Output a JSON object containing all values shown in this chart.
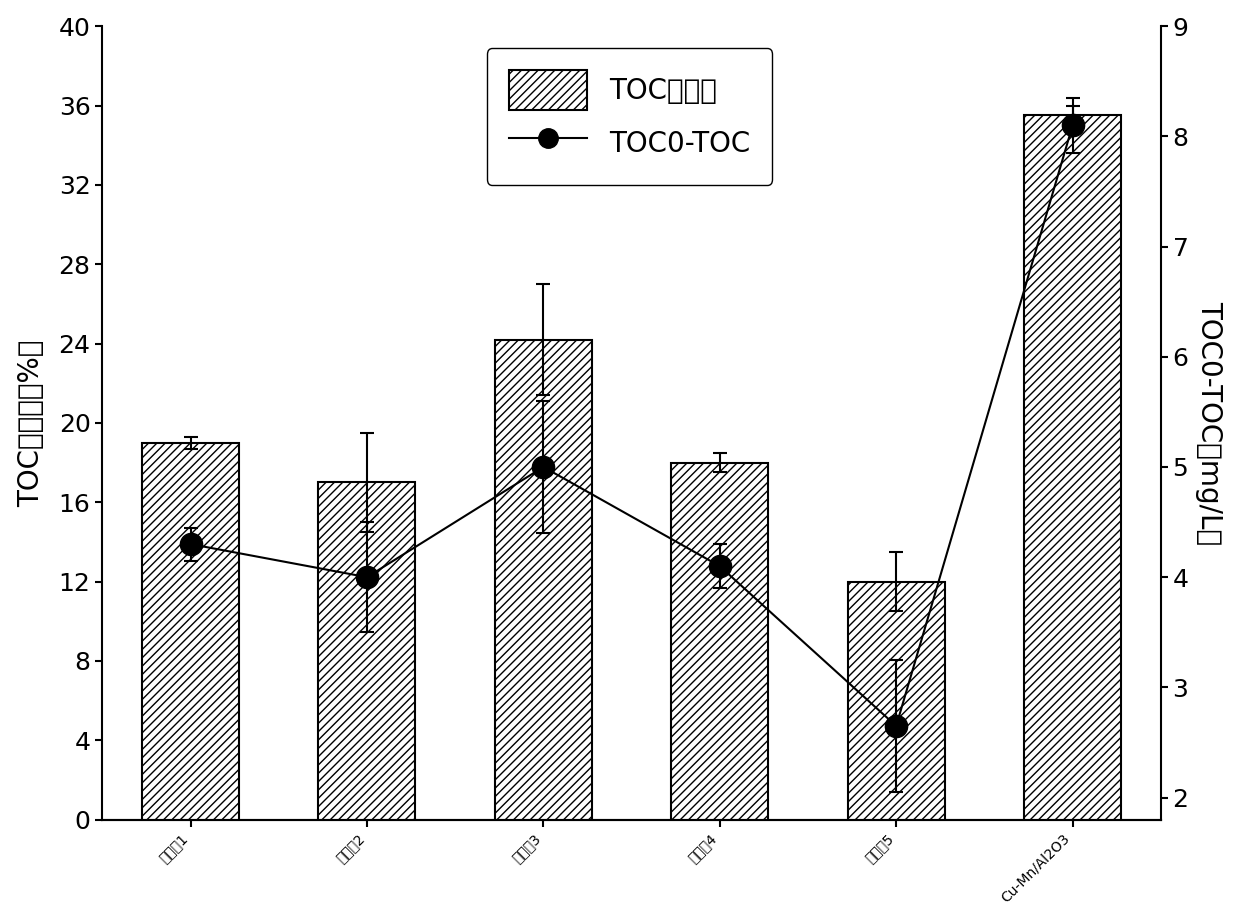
{
  "categories": [
    "催化剁1",
    "催化剁2",
    "催化剁3",
    "催化剁4",
    "催化剁5",
    "Cu-Mn/Al2O3"
  ],
  "bar_values": [
    19.0,
    17.0,
    24.2,
    18.0,
    12.0,
    35.5
  ],
  "bar_yerr": [
    0.3,
    2.5,
    2.8,
    0.5,
    1.5,
    0.5
  ],
  "line_values": [
    4.3,
    4.0,
    5.0,
    4.1,
    2.65,
    8.1
  ],
  "line_yerr": [
    0.15,
    0.5,
    0.6,
    0.2,
    0.6,
    0.25
  ],
  "ylabel_left": "TOC去除率（%）",
  "ylabel_right": "TOC0-TOC（mg/L）",
  "ylim_left": [
    0,
    40
  ],
  "ylim_right": [
    1.8,
    9
  ],
  "yticks_left": [
    0,
    4,
    8,
    12,
    16,
    20,
    24,
    28,
    32,
    36,
    40
  ],
  "yticks_right": [
    2,
    3,
    4,
    5,
    6,
    7,
    8,
    9
  ],
  "legend_bar": "TOC去除率",
  "legend_line": "TOC0-TOC",
  "bar_color": "white",
  "bar_edgecolor": "black",
  "line_color": "black",
  "marker_color": "black",
  "background_color": "white",
  "hatch": "////",
  "fontsize_label": 20,
  "fontsize_tick": 18,
  "fontsize_legend": 20
}
